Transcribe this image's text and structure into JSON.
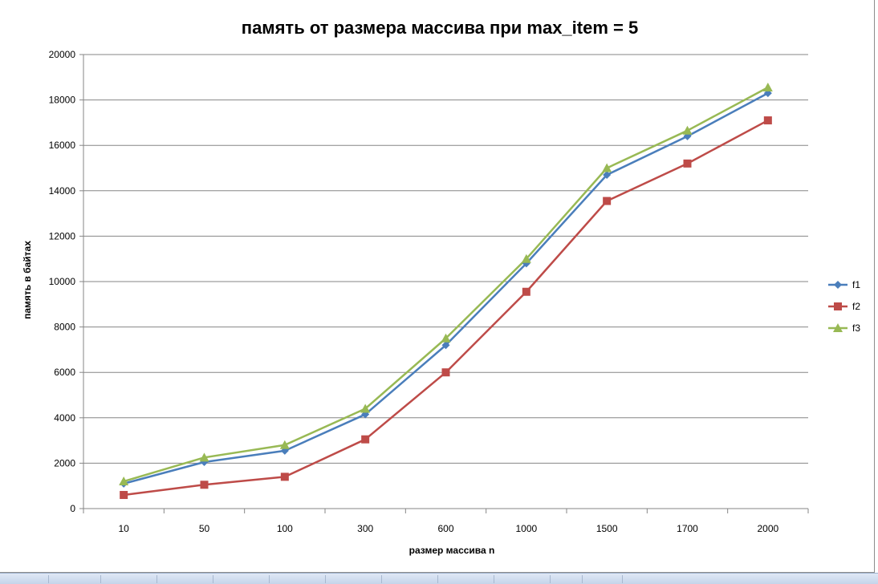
{
  "chart_data": {
    "type": "line",
    "title": "память от  размера массива при max_item = 5",
    "xlabel": "размер массива n",
    "ylabel": "память в байтах",
    "categories": [
      "10",
      "50",
      "100",
      "300",
      "600",
      "1000",
      "1500",
      "1700",
      "2000"
    ],
    "ylim": [
      0,
      20000
    ],
    "yticks": [
      0,
      2000,
      4000,
      6000,
      8000,
      10000,
      12000,
      14000,
      16000,
      18000,
      20000
    ],
    "grid": true,
    "legend_position": "right",
    "series": [
      {
        "name": "f1",
        "color": "#4a7ebb",
        "marker": "diamond",
        "values": [
          1100,
          2050,
          2550,
          4150,
          7200,
          10800,
          14700,
          16400,
          18300
        ]
      },
      {
        "name": "f2",
        "color": "#be4b48",
        "marker": "square",
        "values": [
          600,
          1050,
          1400,
          3050,
          6000,
          9550,
          13550,
          15200,
          17100
        ]
      },
      {
        "name": "f3",
        "color": "#98b954",
        "marker": "triangle",
        "values": [
          1200,
          2250,
          2800,
          4400,
          7500,
          11000,
          15000,
          16650,
          18550
        ]
      }
    ]
  }
}
